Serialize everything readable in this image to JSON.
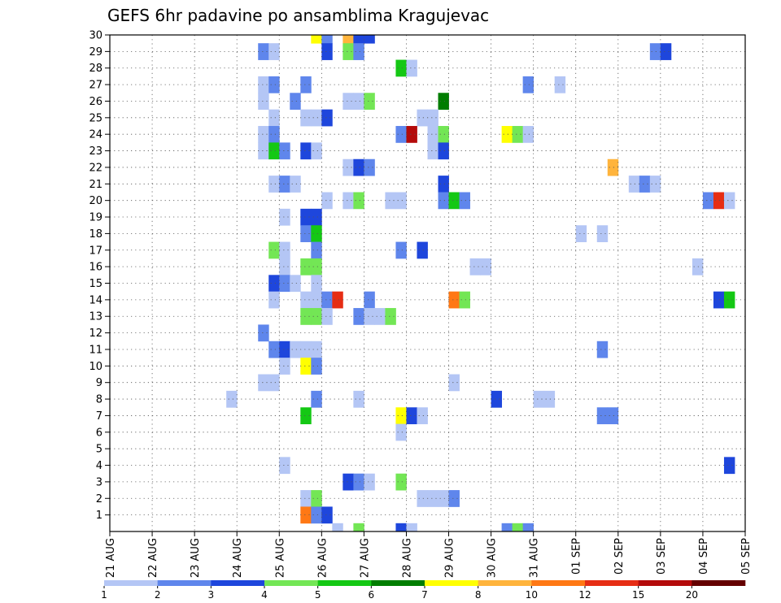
{
  "chart_data": {
    "type": "heatmap",
    "title": "GEFS 6hr padavine po ansamblima Kragujevac",
    "xlabel": "",
    "ylabel": "",
    "x_tick_labels": [
      "21 AUG",
      "22 AUG",
      "23 AUG",
      "24 AUG",
      "25 AUG",
      "26 AUG",
      "27 AUG",
      "28 AUG",
      "29 AUG",
      "30 AUG",
      "31 AUG",
      "01 SEP",
      "02 SEP",
      "03 SEP",
      "04 SEP",
      "05 SEP"
    ],
    "y_tick_labels": [
      "1",
      "2",
      "3",
      "4",
      "5",
      "6",
      "7",
      "8",
      "9",
      "10",
      "11",
      "12",
      "13",
      "14",
      "15",
      "16",
      "17",
      "18",
      "19",
      "20",
      "21",
      "22",
      "23",
      "24",
      "25",
      "26",
      "27",
      "28",
      "29",
      "30"
    ],
    "xlim_days": [
      0,
      15
    ],
    "ylim_members": [
      0,
      30
    ],
    "x_unit": "days since 21 AUG",
    "y_unit": "ensemble member",
    "grid": true,
    "legend": {
      "placement": "bottom",
      "boundaries": [
        "1",
        "2",
        "3",
        "4",
        "5",
        "6",
        "7",
        "8",
        "10",
        "12",
        "15",
        "20"
      ],
      "colors": [
        "#b4c6f5",
        "#5f86ec",
        "#1e46dc",
        "#73e655",
        "#14c814",
        "#007d00",
        "#ffff00",
        "#ffb43c",
        "#ff7814",
        "#e62d14",
        "#b40a0a",
        "#640000"
      ]
    },
    "levels": [
      "#b4c6f5",
      "#5f86ec",
      "#1e46dc",
      "#73e655",
      "#14c814",
      "#007d00",
      "#ffff00",
      "#ffb43c",
      "#ff7814",
      "#e62d14",
      "#b40a0a",
      "#640000"
    ],
    "cells": [
      [
        30,
        4.75,
        6
      ],
      [
        30,
        5.0,
        1
      ],
      [
        30,
        5.5,
        7
      ],
      [
        30,
        5.75,
        2
      ],
      [
        30,
        6.0,
        2
      ],
      [
        29,
        3.5,
        1
      ],
      [
        29,
        3.75,
        0
      ],
      [
        29,
        5.0,
        2
      ],
      [
        29,
        5.5,
        3
      ],
      [
        29,
        5.75,
        1
      ],
      [
        29,
        12.75,
        1
      ],
      [
        29,
        13.0,
        2
      ],
      [
        28,
        6.75,
        4
      ],
      [
        28,
        7.0,
        0
      ],
      [
        27,
        3.5,
        0
      ],
      [
        27,
        3.75,
        1
      ],
      [
        27,
        4.5,
        1
      ],
      [
        27,
        9.75,
        1
      ],
      [
        27,
        10.5,
        0
      ],
      [
        26,
        3.5,
        0
      ],
      [
        26,
        4.25,
        1
      ],
      [
        26,
        5.5,
        0
      ],
      [
        26,
        5.75,
        0
      ],
      [
        26,
        6.0,
        3
      ],
      [
        26,
        7.75,
        5
      ],
      [
        25,
        3.75,
        0
      ],
      [
        25,
        4.5,
        0
      ],
      [
        25,
        4.75,
        0
      ],
      [
        25,
        5.0,
        2
      ],
      [
        25,
        7.25,
        0
      ],
      [
        25,
        7.5,
        0
      ],
      [
        24,
        3.5,
        0
      ],
      [
        24,
        3.75,
        1
      ],
      [
        24,
        6.75,
        1
      ],
      [
        24,
        7.0,
        10
      ],
      [
        24,
        7.5,
        0
      ],
      [
        24,
        7.75,
        3
      ],
      [
        24,
        9.25,
        6
      ],
      [
        24,
        9.5,
        3
      ],
      [
        24,
        9.75,
        0
      ],
      [
        23,
        3.5,
        0
      ],
      [
        23,
        3.75,
        4
      ],
      [
        23,
        4.0,
        1
      ],
      [
        23,
        4.5,
        2
      ],
      [
        23,
        4.75,
        0
      ],
      [
        23,
        7.5,
        0
      ],
      [
        23,
        7.75,
        2
      ],
      [
        22,
        5.5,
        0
      ],
      [
        22,
        5.75,
        2
      ],
      [
        22,
        6.0,
        1
      ],
      [
        22,
        11.75,
        7
      ],
      [
        21,
        3.75,
        0
      ],
      [
        21,
        4.0,
        1
      ],
      [
        21,
        4.25,
        0
      ],
      [
        21,
        7.75,
        2
      ],
      [
        21,
        12.25,
        0
      ],
      [
        21,
        12.5,
        1
      ],
      [
        21,
        12.75,
        0
      ],
      [
        20,
        5.0,
        0
      ],
      [
        20,
        5.5,
        0
      ],
      [
        20,
        5.75,
        3
      ],
      [
        20,
        6.5,
        0
      ],
      [
        20,
        6.75,
        0
      ],
      [
        20,
        7.75,
        1
      ],
      [
        20,
        8.0,
        4
      ],
      [
        20,
        8.25,
        1
      ],
      [
        20,
        14.0,
        1
      ],
      [
        20,
        14.25,
        9
      ],
      [
        20,
        14.5,
        0
      ],
      [
        19,
        4.0,
        0
      ],
      [
        19,
        4.5,
        2
      ],
      [
        19,
        4.75,
        2
      ],
      [
        18,
        4.5,
        1
      ],
      [
        18,
        4.75,
        4
      ],
      [
        18,
        11.0,
        0
      ],
      [
        18,
        11.5,
        0
      ],
      [
        17,
        3.75,
        3
      ],
      [
        17,
        4.0,
        0
      ],
      [
        17,
        4.75,
        1
      ],
      [
        17,
        6.75,
        1
      ],
      [
        17,
        7.25,
        2
      ],
      [
        16,
        4.0,
        0
      ],
      [
        16,
        4.5,
        3
      ],
      [
        16,
        4.75,
        3
      ],
      [
        16,
        8.5,
        0
      ],
      [
        16,
        8.75,
        0
      ],
      [
        16,
        13.75,
        0
      ],
      [
        15,
        3.75,
        2
      ],
      [
        15,
        4.0,
        1
      ],
      [
        15,
        4.25,
        0
      ],
      [
        15,
        4.75,
        0
      ],
      [
        14,
        3.75,
        0
      ],
      [
        14,
        4.5,
        0
      ],
      [
        14,
        4.75,
        0
      ],
      [
        14,
        5.0,
        1
      ],
      [
        14,
        5.25,
        9
      ],
      [
        14,
        6.0,
        1
      ],
      [
        14,
        8.0,
        8
      ],
      [
        14,
        8.25,
        3
      ],
      [
        14,
        14.25,
        2
      ],
      [
        14,
        14.5,
        4
      ],
      [
        13,
        4.5,
        3
      ],
      [
        13,
        4.75,
        3
      ],
      [
        13,
        5.0,
        0
      ],
      [
        13,
        5.75,
        1
      ],
      [
        13,
        6.0,
        0
      ],
      [
        13,
        6.25,
        0
      ],
      [
        13,
        6.5,
        3
      ],
      [
        12,
        3.5,
        1
      ],
      [
        11,
        3.75,
        1
      ],
      [
        11,
        4.0,
        2
      ],
      [
        11,
        4.25,
        0
      ],
      [
        11,
        4.5,
        0
      ],
      [
        11,
        4.75,
        0
      ],
      [
        11,
        11.5,
        1
      ],
      [
        10,
        4.0,
        0
      ],
      [
        10,
        4.5,
        6
      ],
      [
        10,
        4.75,
        1
      ],
      [
        9,
        3.5,
        0
      ],
      [
        9,
        3.75,
        0
      ],
      [
        9,
        8.0,
        0
      ],
      [
        8,
        2.75,
        0
      ],
      [
        8,
        4.75,
        1
      ],
      [
        8,
        5.75,
        0
      ],
      [
        8,
        9.0,
        2
      ],
      [
        8,
        10.0,
        0
      ],
      [
        8,
        10.25,
        0
      ],
      [
        7,
        4.5,
        4
      ],
      [
        7,
        6.75,
        6
      ],
      [
        7,
        7.0,
        2
      ],
      [
        7,
        7.25,
        0
      ],
      [
        7,
        11.5,
        1
      ],
      [
        7,
        11.75,
        1
      ],
      [
        6,
        6.75,
        0
      ],
      [
        4,
        4.0,
        0
      ],
      [
        4,
        14.5,
        2
      ],
      [
        3,
        5.5,
        2
      ],
      [
        3,
        5.75,
        1
      ],
      [
        3,
        6.0,
        0
      ],
      [
        3,
        6.75,
        3
      ],
      [
        2,
        4.5,
        0
      ],
      [
        2,
        4.75,
        3
      ],
      [
        2,
        7.25,
        0
      ],
      [
        2,
        7.5,
        0
      ],
      [
        2,
        7.75,
        0
      ],
      [
        2,
        8.0,
        1
      ],
      [
        1,
        4.5,
        8
      ],
      [
        1,
        4.75,
        1
      ],
      [
        1,
        5.0,
        2
      ],
      [
        0,
        5.25,
        0
      ],
      [
        0,
        5.75,
        3
      ],
      [
        0,
        6.75,
        2
      ],
      [
        0,
        7.0,
        0
      ],
      [
        0,
        9.25,
        1
      ],
      [
        0,
        9.5,
        3
      ],
      [
        0,
        9.75,
        1
      ]
    ]
  }
}
